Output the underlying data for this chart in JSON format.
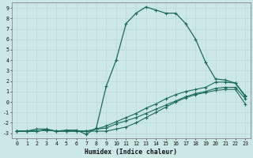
{
  "xlabel": "Humidex (Indice chaleur)",
  "bg_color": "#cce8e5",
  "line_color": "#1a6b5a",
  "grid_color": "#b8d8d4",
  "xlim": [
    -0.5,
    23.5
  ],
  "ylim": [
    -3.5,
    9.5
  ],
  "xticks": [
    0,
    1,
    2,
    3,
    4,
    5,
    6,
    7,
    8,
    9,
    10,
    11,
    12,
    13,
    14,
    15,
    16,
    17,
    18,
    19,
    20,
    21,
    22,
    23
  ],
  "yticks": [
    -3,
    -2,
    -1,
    0,
    1,
    2,
    3,
    4,
    5,
    6,
    7,
    8,
    9
  ],
  "curve1_x": [
    0,
    1,
    2,
    3,
    4,
    5,
    6,
    7,
    8,
    9,
    10,
    11,
    12,
    13,
    14,
    15,
    16,
    17,
    18,
    19,
    20,
    21,
    22,
    23
  ],
  "curve1_y": [
    -2.8,
    -2.8,
    -2.6,
    -2.6,
    -2.8,
    -2.7,
    -2.7,
    -3.1,
    -2.5,
    1.5,
    4.0,
    7.5,
    8.5,
    9.1,
    8.8,
    8.5,
    8.5,
    7.5,
    6.0,
    3.8,
    2.2,
    2.1,
    1.8,
    0.6
  ],
  "curve2_x": [
    0,
    1,
    2,
    3,
    4,
    5,
    6,
    7,
    8,
    9,
    10,
    11,
    12,
    13,
    14,
    15,
    16,
    17,
    18,
    19,
    20,
    21,
    22,
    23
  ],
  "curve2_y": [
    -2.8,
    -2.8,
    -2.8,
    -2.7,
    -2.8,
    -2.8,
    -2.8,
    -2.8,
    -2.6,
    -2.3,
    -1.9,
    -1.5,
    -1.1,
    -0.6,
    -0.2,
    0.3,
    0.7,
    1.0,
    1.2,
    1.4,
    1.9,
    1.9,
    1.8,
    0.5
  ],
  "curve3_x": [
    0,
    1,
    2,
    3,
    4,
    5,
    6,
    7,
    8,
    9,
    10,
    11,
    12,
    13,
    14,
    15,
    16,
    17,
    18,
    19,
    20,
    21,
    22,
    23
  ],
  "curve3_y": [
    -2.8,
    -2.8,
    -2.8,
    -2.7,
    -2.8,
    -2.8,
    -2.8,
    -2.8,
    -2.6,
    -2.5,
    -2.1,
    -1.8,
    -1.5,
    -1.1,
    -0.7,
    -0.3,
    0.1,
    0.5,
    0.8,
    1.0,
    1.3,
    1.4,
    1.4,
    0.3
  ],
  "curve4_x": [
    0,
    1,
    2,
    3,
    4,
    5,
    6,
    7,
    8,
    9,
    10,
    11,
    12,
    13,
    14,
    15,
    16,
    17,
    18,
    19,
    20,
    21,
    22,
    23
  ],
  "curve4_y": [
    -2.8,
    -2.8,
    -2.8,
    -2.7,
    -2.8,
    -2.8,
    -2.8,
    -2.8,
    -2.8,
    -2.8,
    -2.6,
    -2.4,
    -2.0,
    -1.5,
    -1.0,
    -0.5,
    0.0,
    0.4,
    0.7,
    0.9,
    1.1,
    1.2,
    1.2,
    -0.2
  ]
}
